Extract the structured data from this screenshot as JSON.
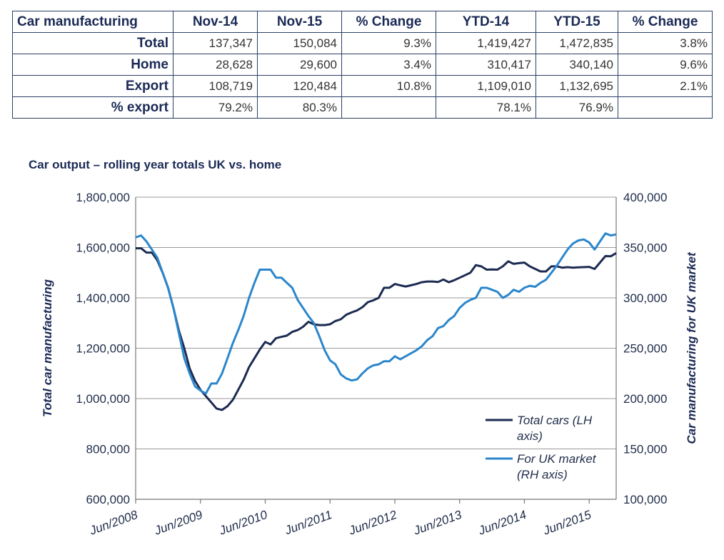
{
  "table": {
    "headers": [
      "Car manufacturing",
      "Nov-14",
      "Nov-15",
      "% Change",
      "YTD-14",
      "YTD-15",
      "% Change"
    ],
    "rows": [
      [
        "Total",
        "137,347",
        "150,084",
        "9.3%",
        "1,419,427",
        "1,472,835",
        "3.8%"
      ],
      [
        "Home",
        "28,628",
        "29,600",
        "3.4%",
        "310,417",
        "340,140",
        "9.6%"
      ],
      [
        "Export",
        "108,719",
        "120,484",
        "10.8%",
        "1,109,010",
        "1,132,695",
        "2.1%"
      ],
      [
        "% export",
        "79.2%",
        "80.3%",
        "",
        "78.1%",
        "76.9%",
        ""
      ]
    ]
  },
  "chart_data": {
    "type": "line",
    "title": "Car output – rolling year totals UK vs. home",
    "ylabel_left": "Total car  manufacturing",
    "ylabel_right": "Car manufacturing for UK market",
    "ylim_left": [
      600000,
      1800000
    ],
    "ylim_right": [
      100000,
      400000
    ],
    "left_ticks": [
      "600,000",
      "800,000",
      "1,000,000",
      "1,200,000",
      "1,400,000",
      "1,600,000",
      "1,800,000"
    ],
    "right_ticks": [
      "100,000",
      "150,000",
      "200,000",
      "250,000",
      "300,000",
      "350,000",
      "400,000"
    ],
    "x_tick_labels": [
      "Jun/2008",
      "Jun/2009",
      "Jun/2010",
      "Jun/2011",
      "Jun/2012",
      "Jun/2013",
      "Jun/2014",
      "Jun/2015"
    ],
    "grid": "horizontal",
    "legend_position": "bottom-right",
    "colors": {
      "total": "#1c2b52",
      "uk": "#2b86cc",
      "grid": "#9a9a9a"
    },
    "series": [
      {
        "name": "Total cars (LH axis)",
        "axis": "left",
        "legend_lines": [
          "Total cars (LH",
          "axis)"
        ],
        "values": [
          1597000,
          1597000,
          1580000,
          1580000,
          1550000,
          1500000,
          1440000,
          1360000,
          1270000,
          1200000,
          1120000,
          1070000,
          1035000,
          1010000,
          985000,
          960000,
          955000,
          970000,
          995000,
          1035000,
          1075000,
          1125000,
          1160000,
          1195000,
          1225000,
          1215000,
          1240000,
          1245000,
          1250000,
          1265000,
          1272000,
          1285000,
          1305000,
          1295000,
          1292000,
          1292000,
          1295000,
          1308000,
          1315000,
          1333000,
          1342000,
          1350000,
          1363000,
          1383000,
          1390000,
          1400000,
          1440000,
          1440000,
          1455000,
          1450000,
          1445000,
          1450000,
          1455000,
          1462000,
          1465000,
          1465000,
          1463000,
          1473000,
          1462000,
          1470000,
          1480000,
          1490000,
          1500000,
          1530000,
          1525000,
          1512000,
          1513000,
          1512000,
          1525000,
          1545000,
          1535000,
          1538000,
          1540000,
          1525000,
          1515000,
          1505000,
          1505000,
          1525000,
          1525000,
          1520000,
          1522000,
          1520000,
          1521000,
          1522000,
          1523000,
          1515000,
          1540000,
          1566000,
          1565000,
          1578000
        ]
      },
      {
        "name": "For UK market (RH axis)",
        "axis": "right",
        "legend_lines": [
          "For UK market",
          "(RH axis)"
        ],
        "values": [
          360000,
          362000,
          356000,
          348000,
          340000,
          325000,
          310000,
          290000,
          265000,
          240000,
          225000,
          212000,
          208000,
          205000,
          215000,
          215000,
          225000,
          240000,
          255000,
          268000,
          282000,
          300000,
          315000,
          328000,
          328000,
          328000,
          320000,
          320000,
          315000,
          310000,
          298000,
          290000,
          282000,
          275000,
          262000,
          248000,
          238000,
          234000,
          224000,
          220000,
          218000,
          219000,
          225000,
          230000,
          233000,
          234000,
          237000,
          237000,
          242000,
          239000,
          242000,
          245000,
          248000,
          252000,
          258000,
          262000,
          270000,
          272000,
          278000,
          282000,
          290000,
          295000,
          298000,
          300000,
          310000,
          310000,
          308000,
          306000,
          300000,
          303000,
          308000,
          306000,
          310000,
          312000,
          311000,
          315000,
          318000,
          325000,
          332000,
          340000,
          348000,
          354000,
          357000,
          358000,
          355000,
          348000,
          356000,
          364000,
          362000,
          363000
        ]
      }
    ]
  }
}
